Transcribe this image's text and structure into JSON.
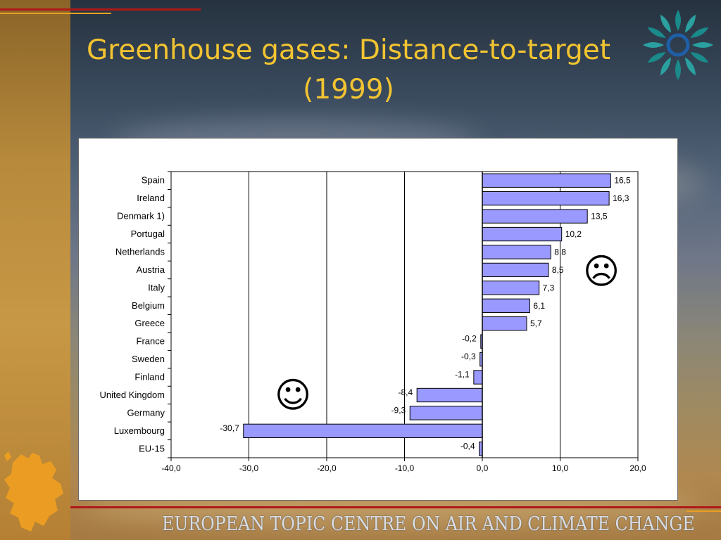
{
  "slide": {
    "title_lines": [
      "Greenhouse gases: Distance-to-target",
      "(1999)"
    ],
    "footer": "EUROPEAN TOPIC CENTRE ON AIR AND CLIMATE CHANGE",
    "colors": {
      "title": "#f2c431",
      "bar_fill": "#9999ff",
      "bar_stroke": "#000000",
      "accent_red": "#b01818",
      "accent_yellow": "#e8a020"
    },
    "icons": [
      "eea-logo-icon",
      "europe-map-icon",
      "frown-face-icon",
      "smile-face-icon"
    ],
    "frown": "☹",
    "smile": "☺"
  },
  "chart_data": {
    "type": "bar",
    "orientation": "horizontal",
    "categories": [
      "Spain",
      "Ireland",
      "Denmark 1)",
      "Portugal",
      "Netherlands",
      "Austria",
      "Italy",
      "Belgium",
      "Greece",
      "France",
      "Sweden",
      "Finland",
      "United Kingdom",
      "Germany",
      "Luxembourg",
      "EU-15"
    ],
    "values": [
      16.5,
      16.3,
      13.5,
      10.2,
      8.8,
      8.5,
      7.3,
      6.1,
      5.7,
      -0.2,
      -0.3,
      -1.1,
      -8.4,
      -9.3,
      -30.7,
      -0.4
    ],
    "value_labels": [
      "16,5",
      "16,3",
      "13,5",
      "10,2",
      "8,8",
      "8,5",
      "7,3",
      "6,1",
      "5,7",
      "-0,2",
      "-0,3",
      "-1,1",
      "-8,4",
      "-9,3",
      "-30,7",
      "-0,4"
    ],
    "xlim": [
      -40,
      20
    ],
    "xticks": [
      -40,
      -30,
      -20,
      -10,
      0,
      10,
      20
    ],
    "xtick_labels": [
      "-40,0",
      "-30,0",
      "-20,0",
      "-10,0",
      "0,0",
      "10,0",
      "20,0"
    ],
    "title": "",
    "xlabel": "",
    "ylabel": "",
    "grid": "vertical",
    "legend": "none"
  }
}
